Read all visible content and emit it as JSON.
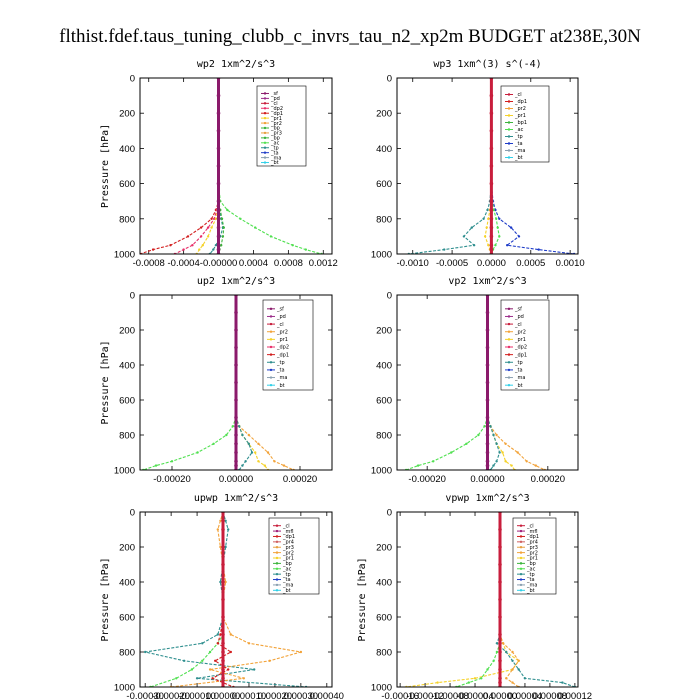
{
  "figure_title": "flthist.fdef.taus_tuning_clubb_c_invrs_tau_n2_xp2m  BUDGET at238E,30N",
  "colors": {
    "_sf": "#8B1A6B",
    "_pd": "#9B2D8A",
    "_cl": "#C81E3C",
    "_mfl": "#A0207A",
    "_dp1": "#D21E1E",
    "_dp2": "#E8306A",
    "_pr1": "#F5D22A",
    "_pr2": "#F2A33A",
    "_pr3": "#E8A040",
    "_pr4": "#D06060",
    "_bp": "#3CB43C",
    "_bp1": "#3CB43C",
    "_ac": "#50E050",
    "_tp": "#2F8F8F",
    "_ta": "#1E3CC8",
    "_ma": "#8AA0B0",
    "_bt": "#30D0E8",
    "axis": "#000000"
  },
  "chart_data": [
    {
      "type": "line",
      "title": "wp2  1xm^2/s^3",
      "ylabel": "Pressure [hPa]",
      "xlim": [
        -0.0009,
        0.0013
      ],
      "ylim": [
        1000,
        0
      ],
      "xticks": [
        -0.0008,
        -0.0004,
        0.0,
        0.0004,
        0.0008,
        0.0012
      ],
      "xticklabels": [
        "-0.0008",
        "-0.0004",
        "-0.00000",
        "0.0004",
        "0.0008",
        "0.0012"
      ],
      "yticks": [
        0,
        200,
        400,
        600,
        800,
        1000
      ],
      "y": [
        0,
        100,
        200,
        300,
        400,
        500,
        600,
        700,
        750,
        800,
        850,
        900,
        950,
        975,
        1000
      ],
      "legend": [
        "_sf",
        "_pd",
        "_cl",
        "_dp2",
        "_dp1",
        "_pr1",
        "_pr2",
        "_bp",
        "_pr3",
        "_bp",
        "_ac",
        "_tp",
        "_ta",
        "_ma",
        "_bt"
      ],
      "series": [
        {
          "name": "_ac",
          "values": [
            0,
            0,
            0,
            0,
            0,
            0,
            0,
            2e-05,
            0.0001,
            0.00025,
            0.00042,
            0.0006,
            0.00085,
            0.001,
            0.00118
          ]
        },
        {
          "name": "_dp1",
          "values": [
            0,
            0,
            0,
            0,
            0,
            0,
            0,
            0,
            -3e-05,
            -8e-05,
            -0.0002,
            -0.00035,
            -0.00055,
            -0.00075,
            -0.0009
          ]
        },
        {
          "name": "_dp2",
          "values": [
            0,
            0,
            0,
            0,
            0,
            0,
            0,
            0,
            -2e-05,
            -5e-05,
            -0.00012,
            -0.0002,
            -0.0003,
            -0.0004,
            -0.0005
          ]
        },
        {
          "name": "_pr1",
          "values": [
            0,
            0,
            0,
            0,
            0,
            0,
            0,
            0,
            -1e-05,
            -3e-05,
            -8e-05,
            -0.00012,
            -0.00018,
            -0.00022,
            -0.00025
          ]
        },
        {
          "name": "_tp",
          "values": [
            0,
            0,
            0,
            0,
            0,
            0,
            0,
            0,
            1e-05,
            3e-05,
            5e-05,
            2e-05,
            -3e-05,
            -6e-05,
            -0.0001
          ]
        },
        {
          "name": "_bp",
          "values": [
            0,
            0,
            0,
            0,
            0,
            0,
            0,
            0,
            2e-05,
            4e-05,
            6e-05,
            5e-05,
            3e-05,
            1e-05,
            0
          ]
        },
        {
          "name": "_sf",
          "values": [
            0,
            0,
            0,
            0,
            0,
            0,
            0,
            0,
            0,
            0,
            0,
            0,
            0,
            0,
            0
          ]
        }
      ]
    },
    {
      "type": "line",
      "title": "wp3  1xm^(3) s^(-4)",
      "ylabel": "",
      "xlim": [
        -0.0012,
        0.0011
      ],
      "ylim": [
        1000,
        0
      ],
      "xticks": [
        -0.001,
        -0.0005,
        0.0,
        0.0005,
        0.001
      ],
      "xticklabels": [
        "-0.0010",
        "-0.0005",
        "0.0000",
        "0.0005",
        "0.0010"
      ],
      "yticks": [
        0,
        200,
        400,
        600,
        800,
        1000
      ],
      "y": [
        0,
        100,
        200,
        300,
        400,
        500,
        600,
        700,
        750,
        800,
        850,
        900,
        950,
        975,
        1000
      ],
      "legend": [
        "_cl",
        "_dp1",
        "_pr2",
        "_pr1",
        "_bp1",
        "_ac",
        "_tp",
        "_ta",
        "_ma",
        "_bt"
      ],
      "series": [
        {
          "name": "_ta",
          "values": [
            0,
            0,
            0,
            0,
            0,
            0,
            0,
            2e-05,
            5e-05,
            0.0001,
            0.00025,
            0.00035,
            0.0002,
            0.0006,
            0.00105
          ]
        },
        {
          "name": "_tp",
          "values": [
            0,
            0,
            0,
            0,
            0,
            0,
            0,
            -2e-05,
            -5e-05,
            -0.0001,
            -0.00025,
            -0.00035,
            -0.00022,
            -0.0006,
            -0.00105
          ]
        },
        {
          "name": "_ac",
          "values": [
            0,
            0,
            0,
            0,
            0,
            0,
            0,
            1e-05,
            3e-05,
            6e-05,
            8e-05,
            0.0001,
            5e-05,
            2e-05,
            0
          ]
        },
        {
          "name": "_pr1",
          "values": [
            0,
            0,
            0,
            0,
            0,
            0,
            0,
            0,
            -2e-05,
            -4e-05,
            -6e-05,
            -8e-05,
            -4e-05,
            -2e-05,
            0
          ]
        },
        {
          "name": "_cl",
          "values": [
            0,
            0,
            0,
            0,
            0,
            0,
            0,
            0,
            0,
            0,
            0,
            0,
            0,
            0,
            0
          ]
        }
      ]
    },
    {
      "type": "line",
      "title": "up2  1xm^2/s^3",
      "ylabel": "Pressure [hPa]",
      "xlim": [
        -0.0003,
        0.0003
      ],
      "ylim": [
        1000,
        0
      ],
      "xticks": [
        -0.0002,
        0.0,
        0.0002
      ],
      "xticklabels": [
        "-0.00020",
        "0.00000",
        "0.00020"
      ],
      "yticks": [
        0,
        200,
        400,
        600,
        800,
        1000
      ],
      "y": [
        0,
        100,
        200,
        300,
        400,
        500,
        600,
        700,
        750,
        800,
        850,
        900,
        950,
        975,
        1000
      ],
      "legend": [
        "_sf",
        "_pd",
        "_cl",
        "_pr2",
        "_pr1",
        "_dp2",
        "_dp1",
        "_tp",
        "_ta",
        "_ma",
        "_bt"
      ],
      "series": [
        {
          "name": "_ac",
          "values": [
            0,
            0,
            0,
            0,
            0,
            0,
            0,
            0,
            -1e-05,
            -3e-05,
            -7e-05,
            -0.00012,
            -0.0002,
            -0.00025,
            -0.00029
          ]
        },
        {
          "name": "_pr2",
          "values": [
            0,
            0,
            0,
            0,
            0,
            0,
            0,
            0,
            1e-05,
            4e-05,
            7e-05,
            0.0001,
            0.00012,
            0.00015,
            0.00018
          ]
        },
        {
          "name": "_pr1",
          "values": [
            0,
            0,
            0,
            0,
            0,
            0,
            0,
            0,
            1e-05,
            2e-05,
            4e-05,
            6e-05,
            7e-05,
            9e-05,
            0.0001
          ]
        },
        {
          "name": "_tp",
          "values": [
            0,
            0,
            0,
            0,
            0,
            0,
            0,
            0,
            1e-05,
            2e-05,
            4e-05,
            5e-05,
            3e-05,
            2e-05,
            1e-05
          ]
        },
        {
          "name": "_sf",
          "values": [
            0,
            0,
            0,
            0,
            0,
            0,
            0,
            0,
            0,
            0,
            0,
            0,
            0,
            0,
            0
          ]
        }
      ]
    },
    {
      "type": "line",
      "title": "vp2  1xm^2/s^3",
      "ylabel": "",
      "xlim": [
        -0.0003,
        0.0003
      ],
      "ylim": [
        1000,
        0
      ],
      "xticks": [
        -0.0002,
        0.0,
        0.0002
      ],
      "xticklabels": [
        "-0.00020",
        "0.00000",
        "0.00020"
      ],
      "yticks": [
        0,
        200,
        400,
        600,
        800,
        1000
      ],
      "y": [
        0,
        100,
        200,
        300,
        400,
        500,
        600,
        700,
        750,
        800,
        850,
        900,
        950,
        975,
        1000
      ],
      "legend": [
        "_sf",
        "_pd",
        "_cl",
        "_pr2",
        "_pr1",
        "_dp2",
        "_dp1",
        "_tp",
        "_ta",
        "_ma",
        "_bt"
      ],
      "series": [
        {
          "name": "_ac",
          "values": [
            0,
            0,
            0,
            0,
            0,
            0,
            0,
            0,
            -1e-05,
            -3e-05,
            -7e-05,
            -0.00012,
            -0.00018,
            -0.00023,
            -0.00027
          ]
        },
        {
          "name": "_pr2",
          "values": [
            0,
            0,
            0,
            0,
            0,
            0,
            0,
            0,
            1e-05,
            3e-05,
            6e-05,
            0.0001,
            0.00013,
            0.00016,
            0.00019
          ]
        },
        {
          "name": "_pr1",
          "values": [
            0,
            0,
            0,
            0,
            0,
            0,
            0,
            0,
            1e-05,
            2e-05,
            3e-05,
            5e-05,
            6e-05,
            8e-05,
            9e-05
          ]
        },
        {
          "name": "_tp",
          "values": [
            0,
            0,
            0,
            0,
            0,
            0,
            0,
            0,
            1e-05,
            2e-05,
            3e-05,
            4e-05,
            3e-05,
            2e-05,
            1e-05
          ]
        },
        {
          "name": "_sf",
          "values": [
            0,
            0,
            0,
            0,
            0,
            0,
            0,
            0,
            0,
            0,
            0,
            0,
            0,
            0,
            0
          ]
        }
      ]
    },
    {
      "type": "line",
      "title": "upwp  1xm^2/s^3",
      "ylabel": "Pressure [hPa]",
      "xlim": [
        -0.00032,
        0.00042
      ],
      "ylim": [
        1000,
        0
      ],
      "xticks": [
        -0.0003,
        -0.0002,
        -0.0001,
        0.0,
        0.0001,
        0.0002,
        0.0003,
        0.0004
      ],
      "xticklabels": [
        "-0.00030",
        "-0.00020",
        "-0.00010",
        "0.00000",
        "0.00010",
        "0.00020",
        "0.00030",
        "0.00040"
      ],
      "yticks": [
        0,
        200,
        400,
        600,
        800,
        1000
      ],
      "y": [
        0,
        50,
        100,
        200,
        300,
        400,
        500,
        600,
        700,
        750,
        800,
        850,
        900,
        950,
        1000
      ],
      "legend": [
        "_cl",
        "_mfl",
        "_dp1",
        "_pr4",
        "_pr3",
        "_pr2",
        "_pr1",
        "_bp",
        "_ac",
        "_tp",
        "_ta",
        "_ma",
        "_bt"
      ],
      "series": [
        {
          "name": "_tp",
          "values": [
            0,
            1e-05,
            2e-05,
            1e-05,
            0,
            -1e-05,
            0,
            0,
            -2e-05,
            -8e-05,
            -0.0003,
            -0.00015,
            0.00012,
            -0.0001,
            0.00032
          ]
        },
        {
          "name": "_pr2",
          "values": [
            0,
            -1e-05,
            -2e-05,
            -1e-05,
            0,
            1e-05,
            0,
            0,
            3e-05,
            0.0001,
            0.0003,
            0.00018,
            -5e-05,
            8e-05,
            -0.0002
          ]
        },
        {
          "name": "_ac",
          "values": [
            0,
            0,
            0,
            0,
            0,
            0,
            0,
            0,
            0,
            -2e-05,
            -5e-05,
            -8e-05,
            -0.00012,
            -0.00018,
            -0.00028
          ]
        },
        {
          "name": "_dp1",
          "values": [
            0,
            0,
            0,
            0,
            0,
            0,
            0,
            0,
            -1e-05,
            -2e-05,
            3e-05,
            -3e-05,
            2e-05,
            -4e-05,
            4e-05
          ]
        },
        {
          "name": "_cl",
          "values": [
            0,
            0,
            0,
            0,
            0,
            0,
            0,
            0,
            0,
            0,
            0,
            0,
            0,
            0,
            0
          ]
        }
      ]
    },
    {
      "type": "line",
      "title": "vpwp  1xm^2/s^3",
      "ylabel": "Pressure [hPa]",
      "xlim": [
        -0.000165,
        0.000125
      ],
      "ylim": [
        1000,
        0
      ],
      "xticks": [
        -0.00016,
        -0.00012,
        -8e-05,
        -4e-05,
        0.0,
        4e-05,
        8e-05,
        0.00012
      ],
      "xticklabels": [
        "-0.00016",
        "-0.00012",
        "-0.00008",
        "-0.00004",
        "0.00000",
        "0.00004",
        "0.00008",
        "0.00012"
      ],
      "yticks": [
        0,
        200,
        400,
        600,
        800,
        1000
      ],
      "y": [
        0,
        100,
        200,
        300,
        400,
        500,
        600,
        700,
        750,
        800,
        850,
        900,
        950,
        975,
        1000
      ],
      "legend": [
        "_cl",
        "_mfl",
        "_dp1",
        "_pr4",
        "_pr3",
        "_pr2",
        "_pr1",
        "_bp",
        "_ac",
        "_tp",
        "_ta",
        "_ma",
        "_bt"
      ],
      "series": [
        {
          "name": "_pr1",
          "values": [
            0,
            0,
            0,
            0,
            0,
            0,
            0,
            0,
            5e-06,
            1e-05,
            3e-05,
            2e-05,
            -4e-05,
            -0.0001,
            -0.00015
          ]
        },
        {
          "name": "_tp",
          "values": [
            0,
            0,
            0,
            0,
            0,
            0,
            0,
            0,
            -5e-06,
            1e-05,
            2e-05,
            3e-05,
            4e-05,
            0.0001,
            0.00012
          ]
        },
        {
          "name": "_pr2",
          "values": [
            0,
            0,
            0,
            0,
            0,
            0,
            0,
            0,
            5e-06,
            2e-05,
            3e-05,
            2e-05,
            1e-05,
            2e-05,
            3e-05
          ]
        },
        {
          "name": "_ac",
          "values": [
            0,
            0,
            0,
            0,
            0,
            0,
            0,
            0,
            0,
            -5e-06,
            -1e-05,
            -2e-05,
            -3e-05,
            -5e-05,
            -7e-05
          ]
        },
        {
          "name": "_cl",
          "values": [
            0,
            0,
            0,
            0,
            0,
            0,
            0,
            0,
            0,
            0,
            0,
            0,
            0,
            0,
            0
          ]
        }
      ]
    }
  ]
}
